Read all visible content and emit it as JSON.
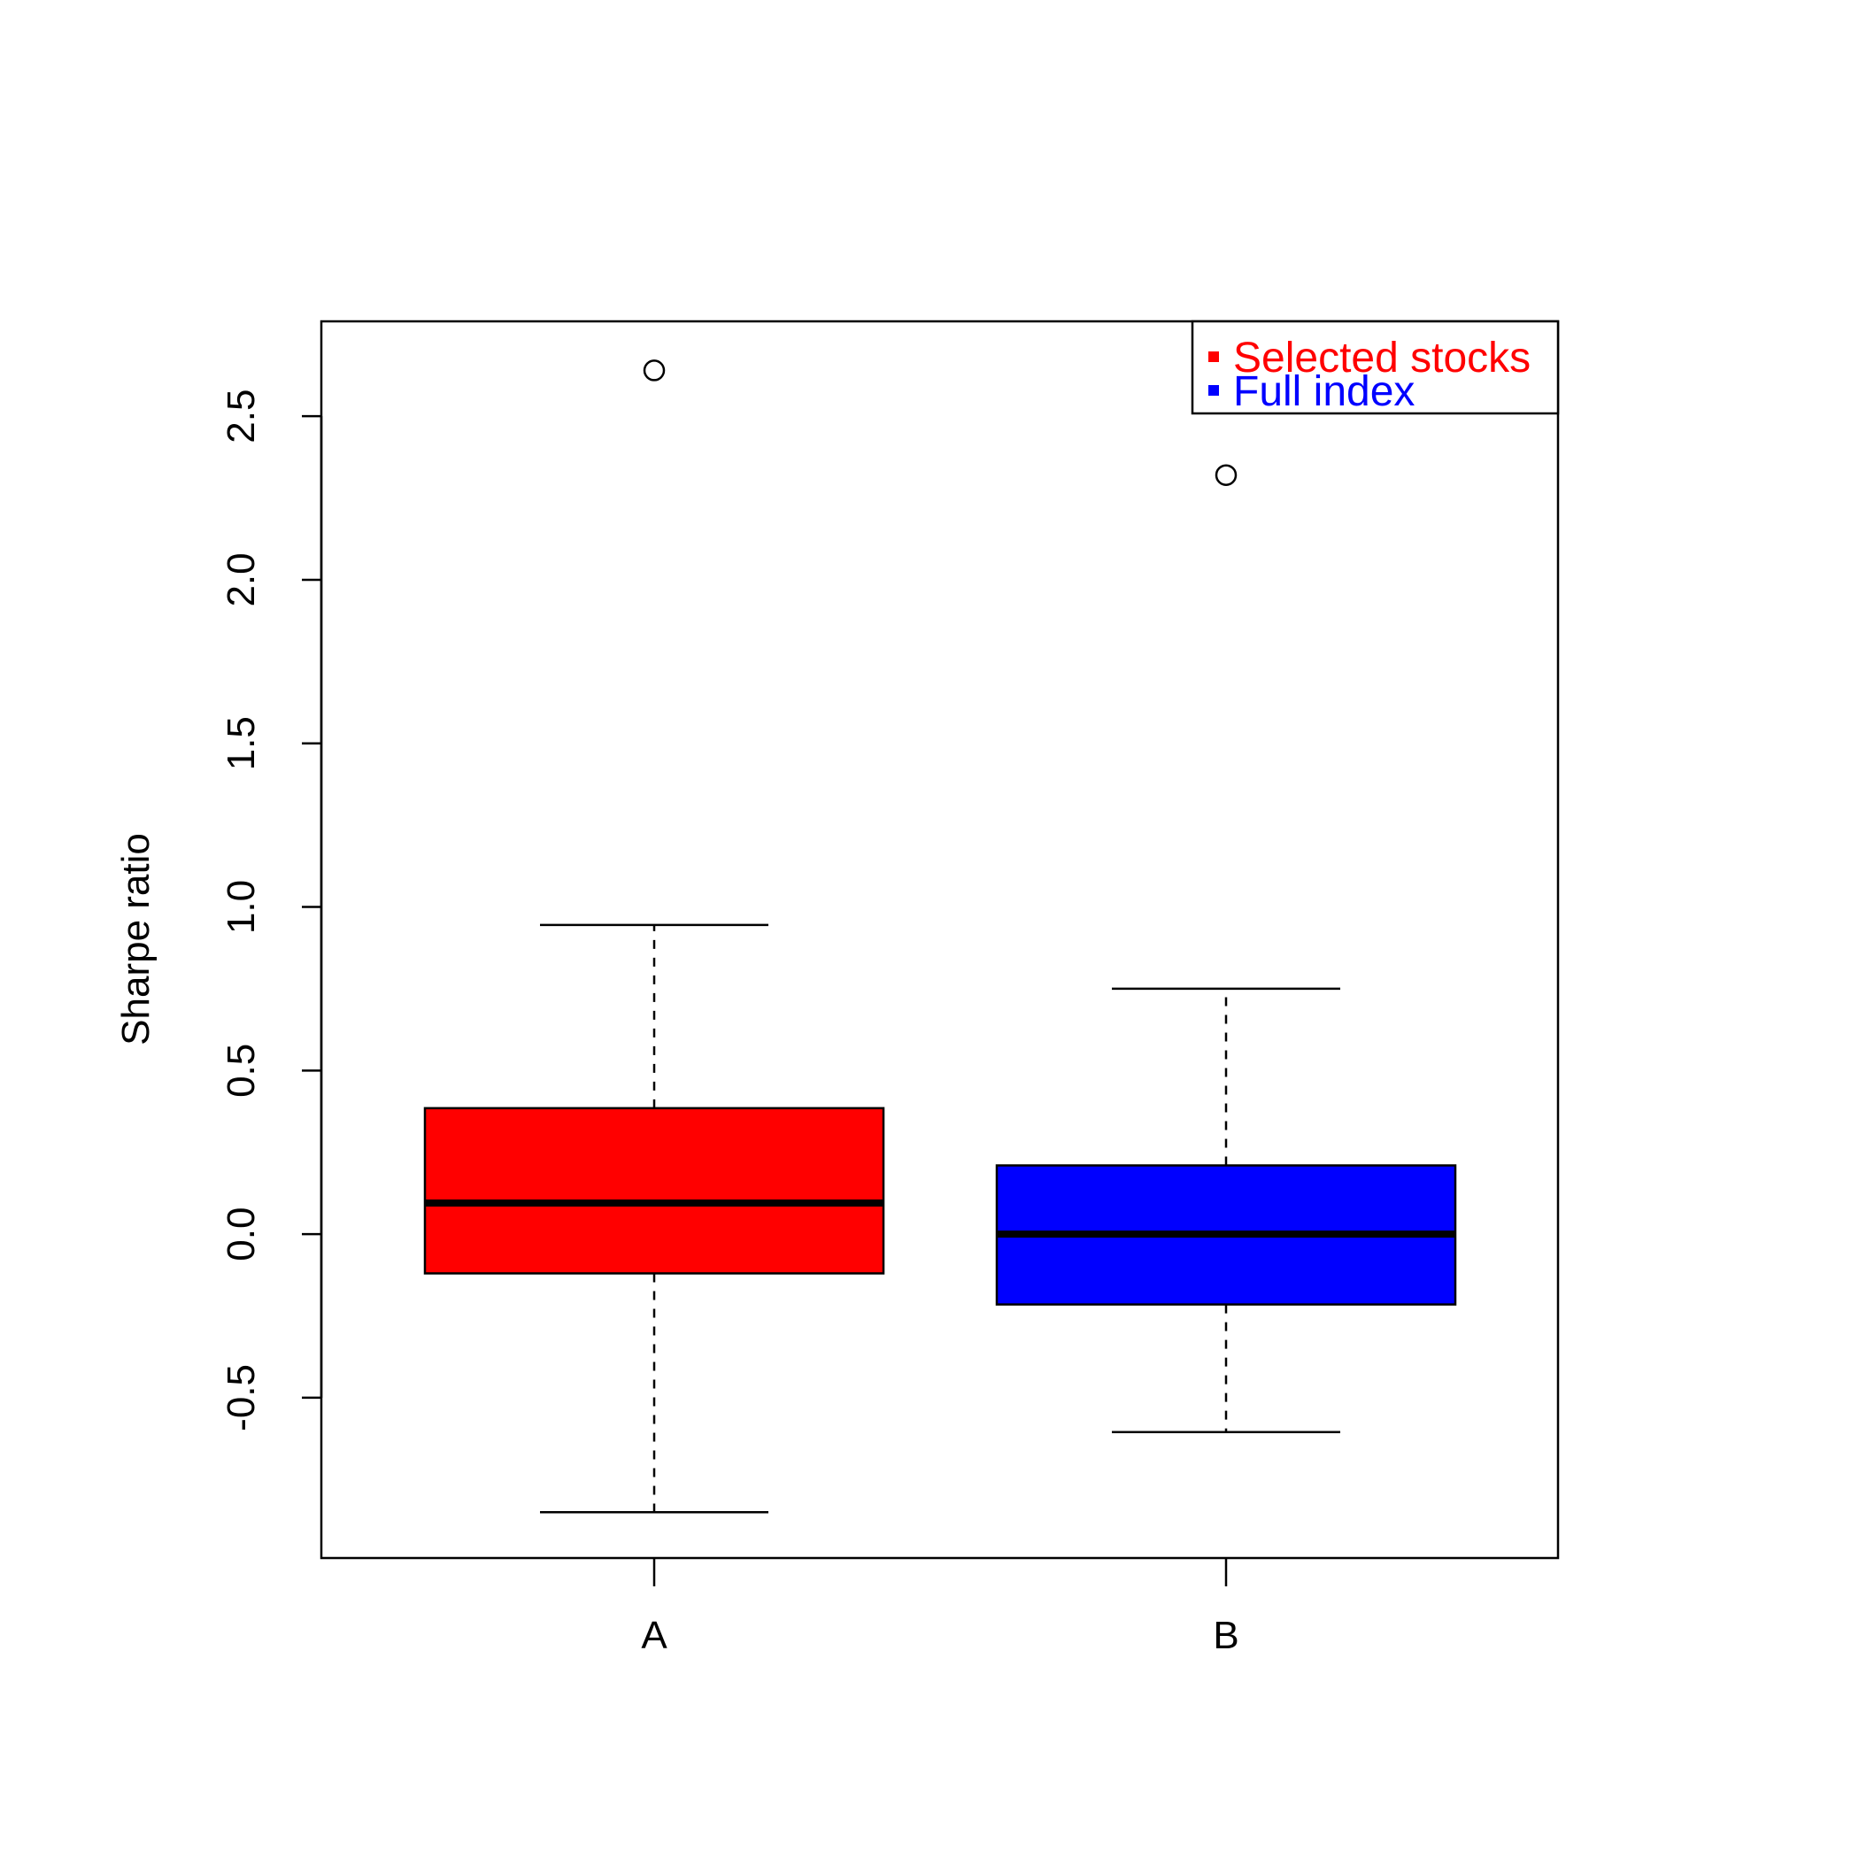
{
  "chart_data": {
    "type": "box",
    "ylabel": "Sharpe ratio",
    "xlabel": "",
    "title": "",
    "ylim": [
      -0.99,
      2.79
    ],
    "yticks": [
      -0.5,
      0.0,
      0.5,
      1.0,
      1.5,
      2.0,
      2.5
    ],
    "ytick_labels": [
      "-0.5",
      "0.0",
      "0.5",
      "1.0",
      "1.5",
      "2.0",
      "2.5"
    ],
    "categories": [
      "A",
      "B"
    ],
    "series": [
      {
        "name": "Selected stocks",
        "category": "A",
        "color": "#ff0000",
        "whisker_low": -0.85,
        "q1": -0.12,
        "median": 0.095,
        "q3": 0.385,
        "whisker_high": 0.945,
        "outliers": [
          2.64
        ]
      },
      {
        "name": "Full index",
        "category": "B",
        "color": "#0000ff",
        "whisker_low": -0.605,
        "q1": -0.215,
        "median": 0.0,
        "q3": 0.21,
        "whisker_high": 0.75,
        "outliers": [
          2.32
        ]
      }
    ],
    "legend": {
      "position": "top-right",
      "entries": [
        {
          "label": "Selected stocks",
          "color": "#ff0000"
        },
        {
          "label": "Full index",
          "color": "#0000ff"
        }
      ]
    },
    "grid": false
  }
}
